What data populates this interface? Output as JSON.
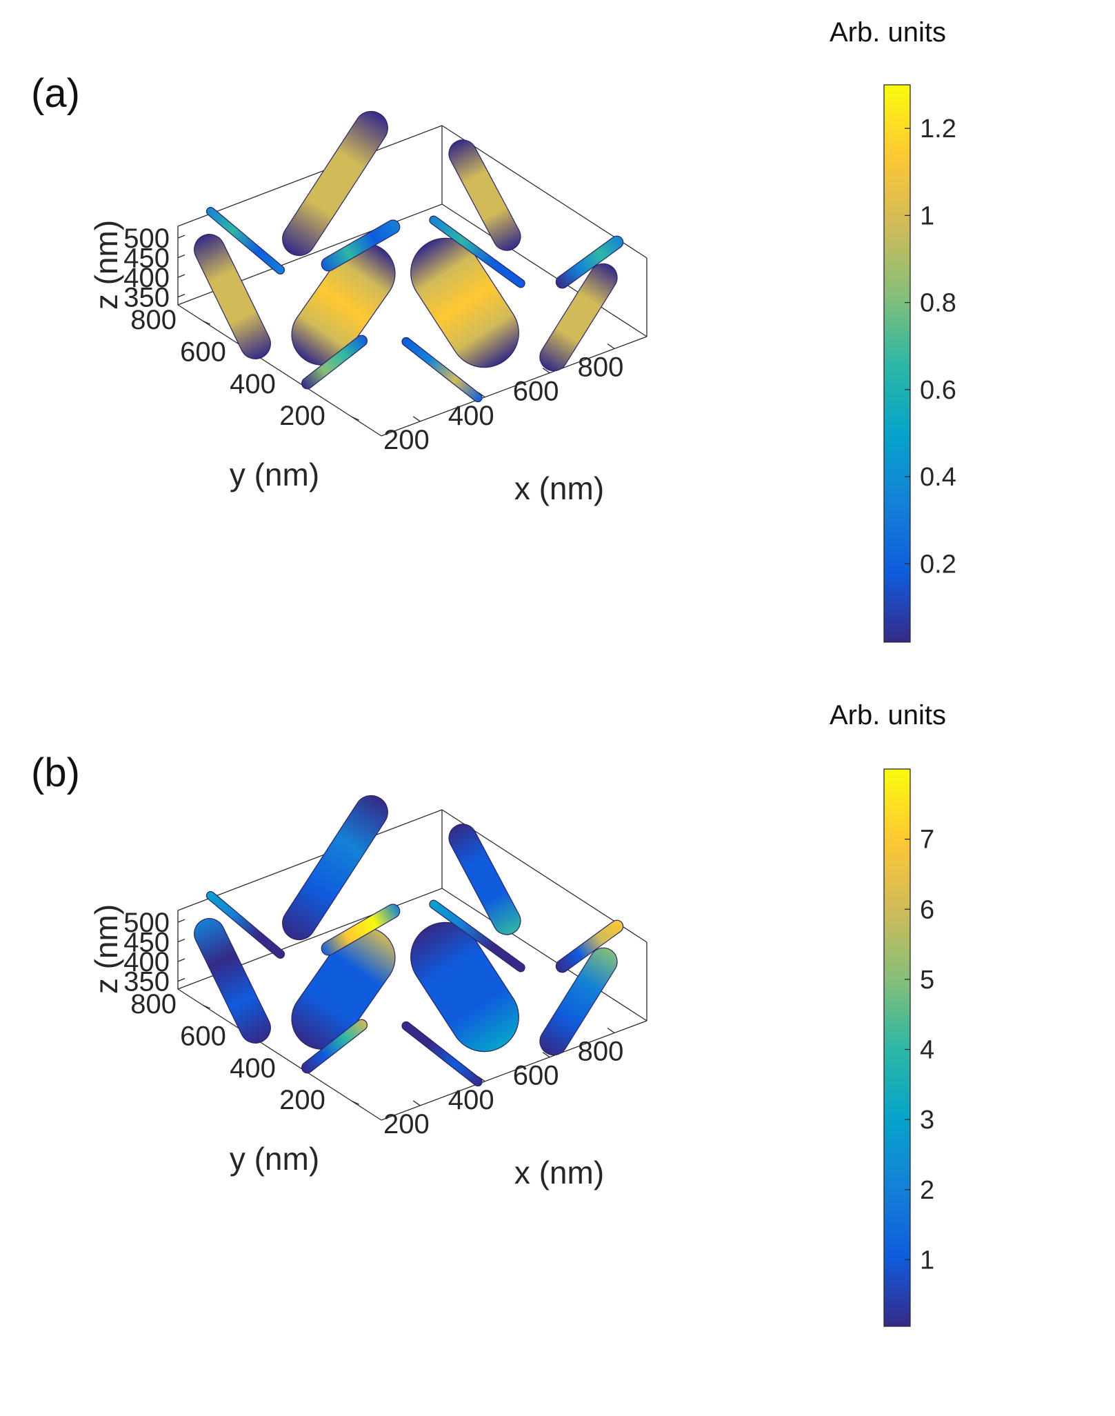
{
  "chart_data": [
    {
      "type": "surface3d",
      "panel_label": "(a)",
      "xlabel": "x (nm)",
      "ylabel": "y (nm)",
      "zlabel": "z (nm)",
      "xticks": [
        "200",
        "400",
        "600",
        "800"
      ],
      "yticks": [
        "200",
        "400",
        "600",
        "800"
      ],
      "zticks": [
        "350",
        "400",
        "450",
        "500"
      ],
      "colorbar": {
        "title": "Arb. units",
        "min": 0.02,
        "max": 1.3,
        "ticks": [
          "0.2",
          "0.4",
          "0.6",
          "0.8",
          "1",
          "1.2"
        ],
        "tick_values": [
          0.2,
          0.4,
          0.6,
          0.8,
          1.0,
          1.2
        ],
        "colormap": "parula"
      },
      "grid": false
    },
    {
      "type": "surface3d",
      "panel_label": "(b)",
      "xlabel": "x (nm)",
      "ylabel": "y (nm)",
      "zlabel": "z (nm)",
      "xticks": [
        "200",
        "400",
        "600",
        "800"
      ],
      "yticks": [
        "200",
        "400",
        "600",
        "800"
      ],
      "zticks": [
        "350",
        "400",
        "450",
        "500"
      ],
      "colorbar": {
        "title": "Arb. units",
        "min": 0.05,
        "max": 8.0,
        "ticks": [
          "1",
          "2",
          "3",
          "4",
          "5",
          "6",
          "7"
        ],
        "tick_values": [
          1,
          2,
          3,
          4,
          5,
          6,
          7
        ],
        "colormap": "parula"
      },
      "grid": false
    }
  ],
  "colors": {
    "parula": [
      "#352a87",
      "#0f5cdd",
      "#1481d6",
      "#06a4ca",
      "#2eb7a4",
      "#87bf77",
      "#d1bb59",
      "#fec832",
      "#f9fb0e"
    ]
  }
}
